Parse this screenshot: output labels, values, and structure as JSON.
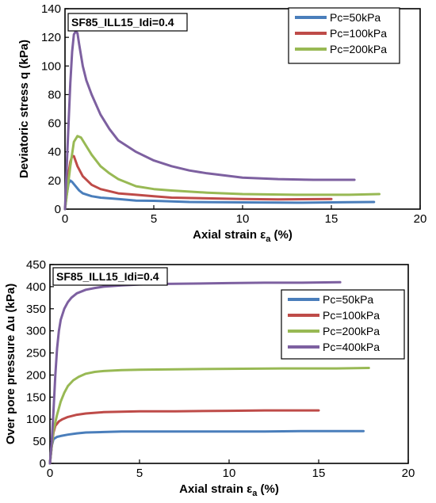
{
  "chart_data": [
    {
      "type": "line",
      "title": "SF85_ILL15_Idi=0.4",
      "xlabel": "Axial strain ε",
      "xlabel_sub": "a",
      "xlabel_suffix": " (%)",
      "ylabel": "Deviatoric stress q (kPa)",
      "xlim": [
        0,
        20
      ],
      "ylim": [
        0,
        140
      ],
      "xticks": [
        0,
        5,
        10,
        15,
        20
      ],
      "yticks": [
        0,
        20,
        40,
        60,
        80,
        100,
        120,
        140
      ],
      "grid": false,
      "legend": "top-right",
      "series": [
        {
          "name": "Pc=50kPa",
          "color": "#4a7ebb",
          "x": [
            0,
            0.1,
            0.2,
            0.3,
            0.4,
            0.6,
            0.8,
            1.0,
            1.5,
            2.0,
            3.0,
            4.0,
            5.0,
            7.0,
            10.0,
            13.0,
            16.0,
            17.4
          ],
          "y": [
            0,
            10,
            18,
            20,
            19,
            16,
            13,
            11,
            9,
            8,
            7,
            6,
            5.8,
            5,
            4.7,
            4.5,
            4.8,
            5
          ]
        },
        {
          "name": "Pc=100kPa",
          "color": "#be4b48",
          "x": [
            0,
            0.1,
            0.2,
            0.3,
            0.4,
            0.5,
            0.7,
            1.0,
            1.5,
            2.0,
            3.0,
            4.0,
            5.0,
            6.0,
            8.0,
            10.0,
            12.0,
            15.0
          ],
          "y": [
            0,
            12,
            25,
            33,
            37,
            37,
            30,
            23,
            17,
            14,
            11,
            10,
            9,
            8,
            7.5,
            7,
            6.8,
            7
          ]
        },
        {
          "name": "Pc=200kPa",
          "color": "#98b954",
          "x": [
            0,
            0.15,
            0.3,
            0.5,
            0.7,
            0.9,
            1.2,
            1.5,
            2.0,
            2.5,
            3.0,
            4.0,
            5.0,
            6.0,
            8.0,
            10.0,
            13.0,
            16.0,
            17.7
          ],
          "y": [
            0,
            15,
            30,
            47,
            51,
            50,
            44,
            38,
            30,
            25,
            21,
            16,
            14,
            13,
            11.5,
            10.5,
            10,
            10,
            10.5
          ]
        },
        {
          "name": "",
          "color": "#7d60a0",
          "x": [
            0,
            0.1,
            0.2,
            0.3,
            0.4,
            0.5,
            0.6,
            0.7,
            0.8,
            1.0,
            1.2,
            1.5,
            2.0,
            2.5,
            3.0,
            4.0,
            5.0,
            6.0,
            7.0,
            8.0,
            10.0,
            12.0,
            14.0,
            16.3
          ],
          "y": [
            0,
            30,
            60,
            88,
            110,
            122,
            124,
            123,
            115,
            100,
            90,
            80,
            66,
            56,
            48,
            40,
            34,
            30,
            27,
            25,
            22,
            21,
            20.5,
            20.5
          ]
        }
      ]
    },
    {
      "type": "line",
      "title": "SF85_ILL15_Idi=0.4",
      "xlabel": "Axial strain ε",
      "xlabel_sub": "a",
      "xlabel_suffix": " (%)",
      "ylabel": "Over pore pressure Δu (kPa)",
      "xlim": [
        0,
        20
      ],
      "ylim": [
        0,
        450
      ],
      "xticks": [
        0,
        5,
        10,
        15,
        20
      ],
      "yticks": [
        0,
        50,
        100,
        150,
        200,
        250,
        300,
        350,
        400,
        450
      ],
      "grid": false,
      "legend": "right",
      "series": [
        {
          "name": "Pc=50kPa",
          "color": "#4a7ebb",
          "x": [
            0,
            0.1,
            0.2,
            0.4,
            0.6,
            1.0,
            1.5,
            2.0,
            3.0,
            4.0,
            6.0,
            8.0,
            10.0,
            12.0,
            14.0,
            16.0,
            17.5
          ],
          "y": [
            0,
            40,
            55,
            60,
            62,
            65,
            68,
            70,
            71,
            72,
            72,
            72,
            72,
            72,
            73,
            73,
            73
          ]
        },
        {
          "name": "Pc=100kPa",
          "color": "#be4b48",
          "x": [
            0,
            0.1,
            0.2,
            0.3,
            0.5,
            0.7,
            1.0,
            1.5,
            2.0,
            3.0,
            5.0,
            7.0,
            10.0,
            12.0,
            15.0
          ],
          "y": [
            0,
            40,
            70,
            85,
            95,
            100,
            105,
            110,
            113,
            116,
            118,
            118,
            119,
            120,
            120
          ]
        },
        {
          "name": "Pc=200kPa",
          "color": "#98b954",
          "x": [
            0,
            0.1,
            0.2,
            0.4,
            0.6,
            0.8,
            1.0,
            1.3,
            1.6,
            2.0,
            2.5,
            3.0,
            4.0,
            5.0,
            7.0,
            10.0,
            13.0,
            16.0,
            17.8
          ],
          "y": [
            0,
            40,
            75,
            110,
            140,
            160,
            175,
            188,
            196,
            203,
            207,
            209,
            211,
            212,
            213,
            214,
            215,
            215,
            216
          ]
        },
        {
          "name": "Pc=400kPa",
          "color": "#7d60a0",
          "x": [
            0,
            0.1,
            0.2,
            0.3,
            0.4,
            0.5,
            0.6,
            0.8,
            1.0,
            1.2,
            1.5,
            2.0,
            2.5,
            3.0,
            4.0,
            5.0,
            6.0,
            8.0,
            10.0,
            12.0,
            14.0,
            16.2
          ],
          "y": [
            0,
            50,
            120,
            200,
            260,
            300,
            325,
            350,
            365,
            375,
            385,
            393,
            397,
            400,
            403,
            405,
            406,
            407,
            408,
            409,
            409,
            410
          ]
        }
      ]
    }
  ]
}
